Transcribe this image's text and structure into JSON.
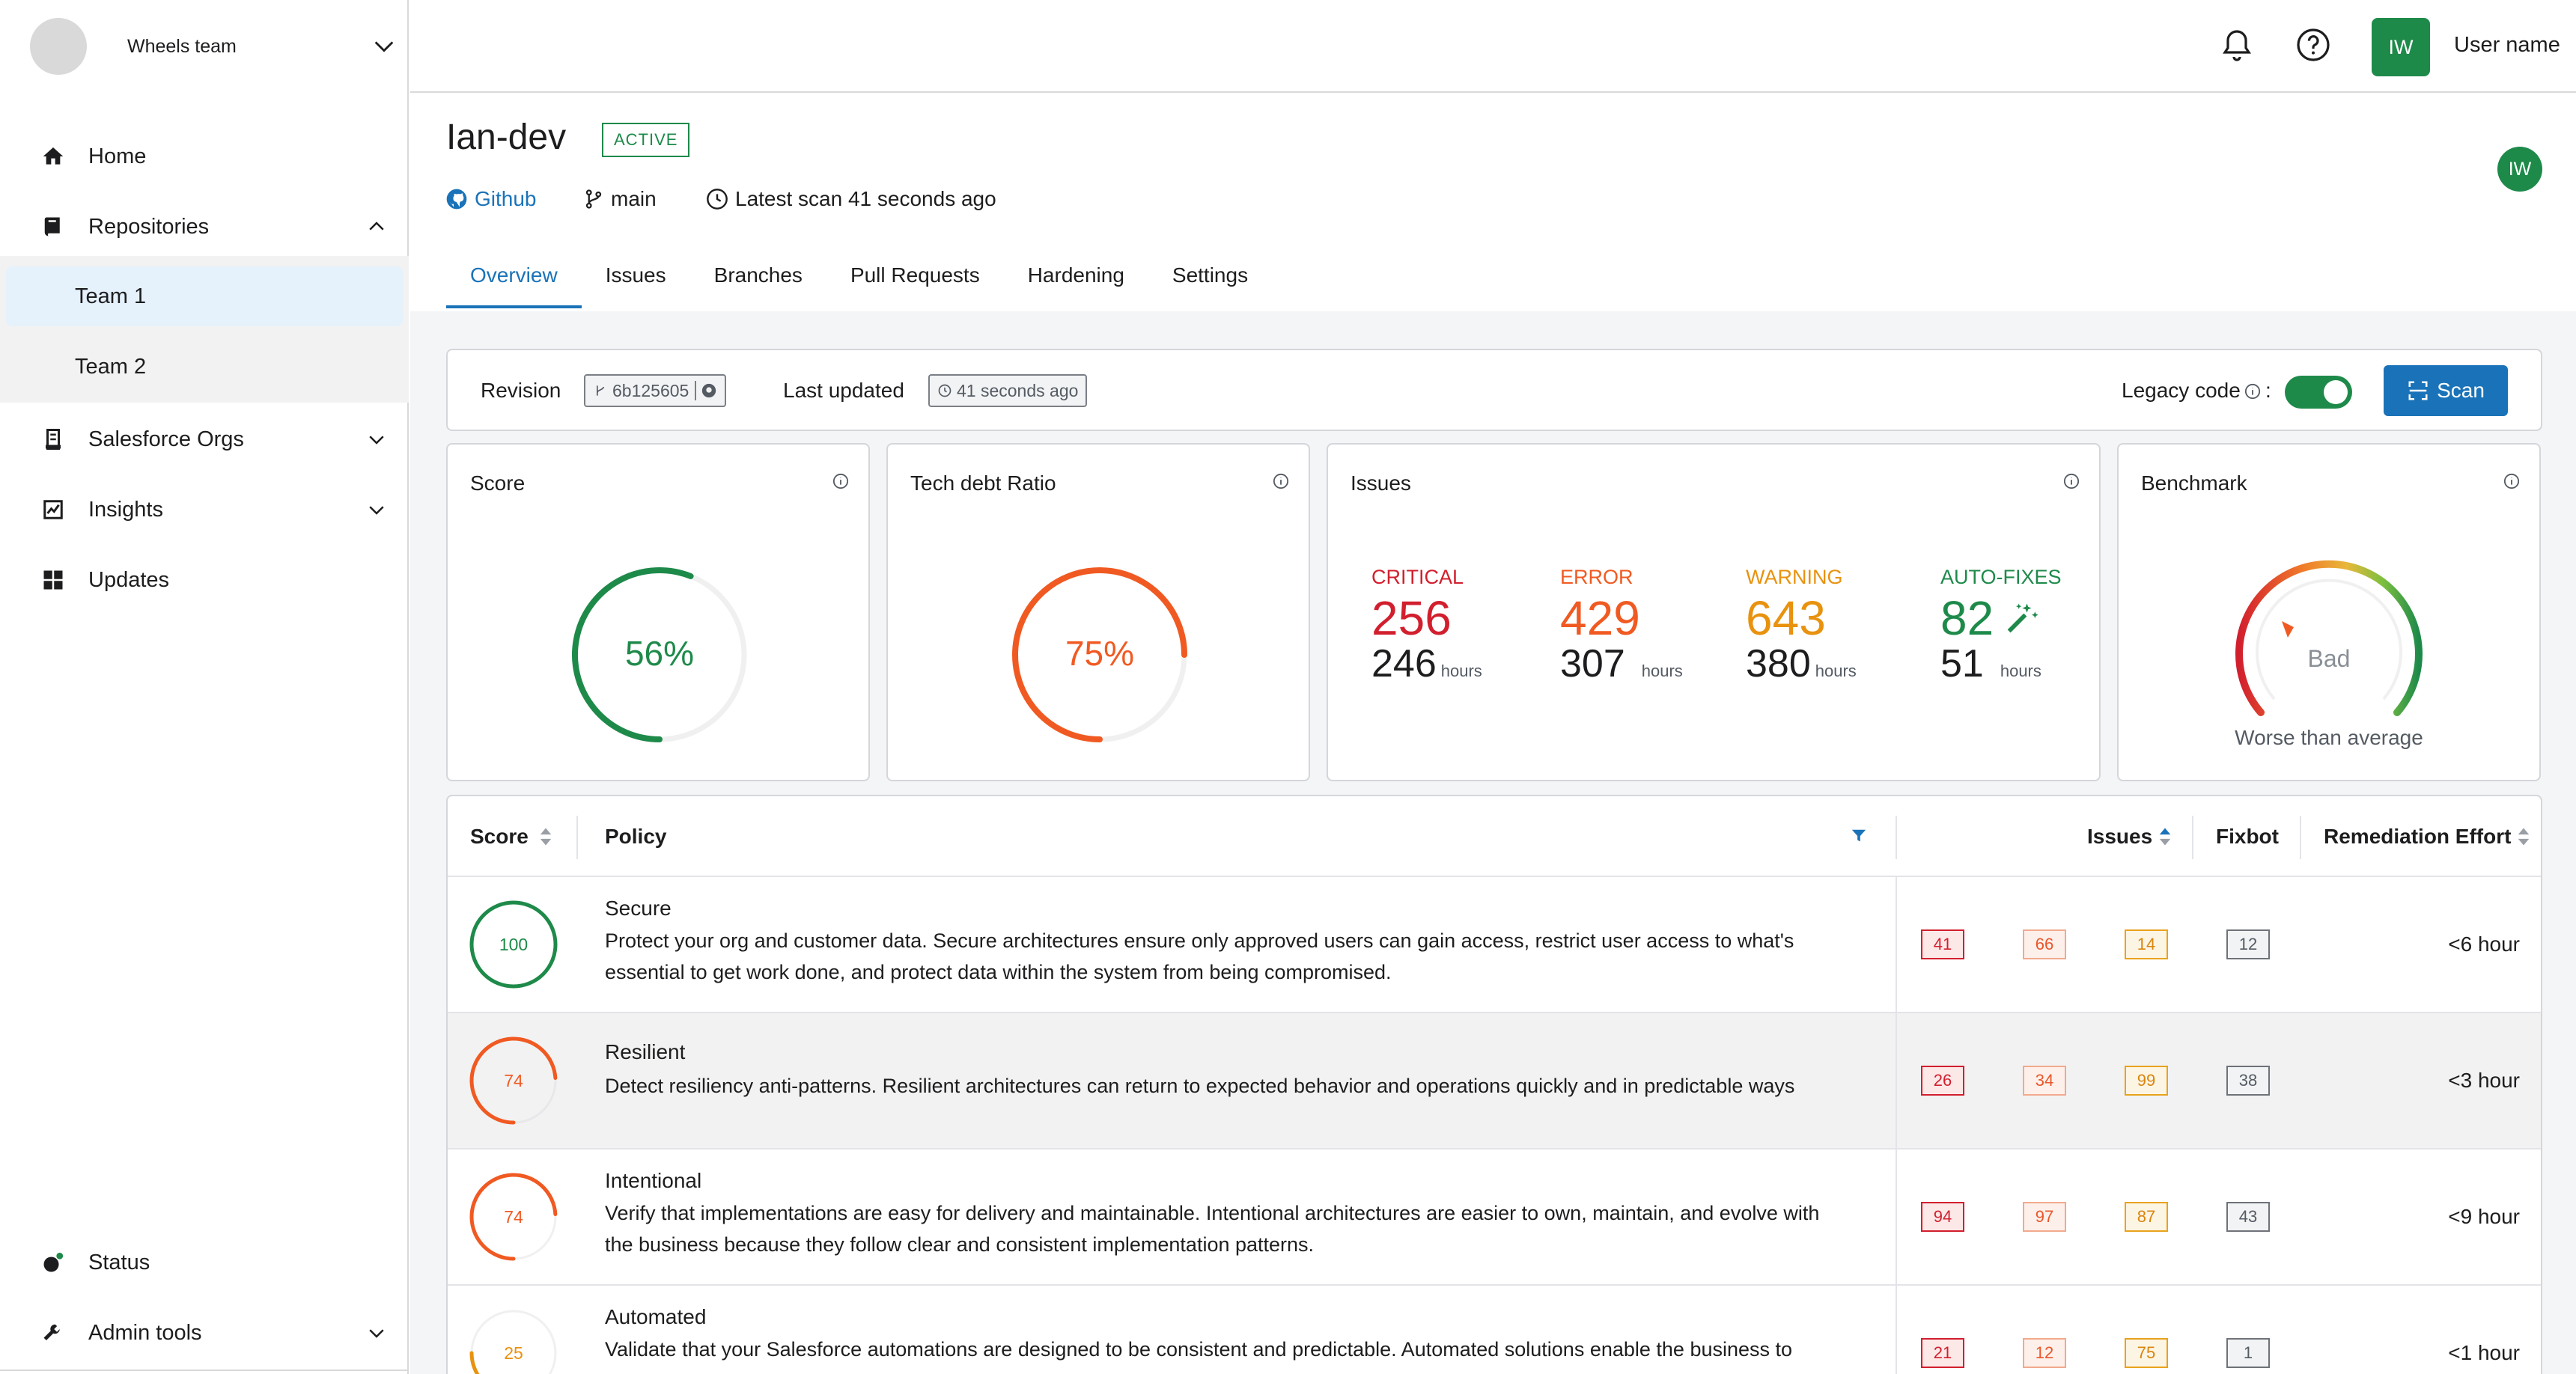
{
  "sidebar": {
    "team": "Wheels team",
    "items": [
      {
        "label": "Home"
      },
      {
        "label": "Repositories"
      },
      {
        "label": "Salesforce Orgs"
      },
      {
        "label": "Insights"
      },
      {
        "label": "Updates"
      },
      {
        "label": "Status"
      },
      {
        "label": "Admin tools"
      }
    ],
    "repo_children": [
      "Team 1",
      "Team 2"
    ]
  },
  "topbar": {
    "avatar_initials": "IW",
    "user_name": "User name"
  },
  "header": {
    "title": "Ian-dev",
    "status": "ACTIVE",
    "source": "Github",
    "branch": "main",
    "latest_scan": "Latest scan 41 seconds ago",
    "owner_initials": "IW"
  },
  "tabs": [
    "Overview",
    "Issues",
    "Branches",
    "Pull Requests",
    "Hardening",
    "Settings"
  ],
  "revision_bar": {
    "revision_label": "Revision",
    "revision_value": "6b125605",
    "updated_label": "Last updated",
    "updated_value": "41 seconds ago",
    "legacy_label": "Legacy code",
    "legacy_suffix": ":",
    "legacy_enabled": true,
    "scan_label": "Scan"
  },
  "cards": {
    "score": {
      "title": "Score",
      "value": "56%",
      "fraction": 0.56
    },
    "tech_debt": {
      "title": "Tech debt Ratio",
      "value": "75%",
      "fraction": 0.75
    },
    "issues": {
      "title": "Issues",
      "categories": [
        {
          "name": "CRITICAL",
          "count": "256",
          "hours": "246",
          "unit": "hours"
        },
        {
          "name": "ERROR",
          "count": "429",
          "hours": "307",
          "unit": "hours"
        },
        {
          "name": "WARNING",
          "count": "643",
          "hours": "380",
          "unit": "hours"
        },
        {
          "name": "AUTO-FIXES",
          "count": "82",
          "hours": "51",
          "unit": "hours"
        }
      ]
    },
    "benchmark": {
      "title": "Benchmark",
      "rating": "Bad",
      "caption": "Worse than average"
    }
  },
  "table": {
    "headers": {
      "score": "Score",
      "policy": "Policy",
      "issues": "Issues",
      "fixbot": "Fixbot",
      "effort": "Remediation Effort"
    },
    "rows": [
      {
        "score": "100",
        "fraction": 1.0,
        "name": "Secure",
        "desc_lines": [
          "Protect your org and customer data. Secure architectures ensure only approved users can gain access, restrict user access to what's",
          "essential to get work done, and protect data within the system from being compromised."
        ],
        "critical": "41",
        "error": "66",
        "warning": "14",
        "fixbot": "12",
        "effort": "<6 hour"
      },
      {
        "score": "74",
        "fraction": 0.74,
        "name": "Resilient",
        "desc_lines": [
          "Detect resiliency anti-patterns. Resilient architectures can return to expected behavior and operations quickly and in predictable ways",
          ""
        ],
        "critical": "26",
        "error": "34",
        "warning": "99",
        "fixbot": "38",
        "effort": "<3 hour"
      },
      {
        "score": "74",
        "fraction": 0.74,
        "name": "Intentional",
        "desc_lines": [
          "Verify that implementations are easy for delivery and maintainable. Intentional architectures are easier to own, maintain, and evolve with",
          "the business because they follow clear and consistent implementation patterns."
        ],
        "critical": "94",
        "error": "97",
        "warning": "87",
        "fixbot": "43",
        "effort": "<9 hour"
      },
      {
        "score": "25",
        "fraction": 0.25,
        "name": "Automated",
        "desc_lines": [
          "Validate that your Salesforce automations are designed to be consistent and predictable. Automated solutions enable the business to get",
          ""
        ],
        "critical": "21",
        "error": "12",
        "warning": "75",
        "fixbot": "1",
        "effort": "<1 hour"
      }
    ]
  },
  "colors": {
    "green": "#1e8a4a",
    "orange": "#f05a22",
    "red": "#d21f2e",
    "warning": "#e8920f",
    "blue": "#1a73b8"
  }
}
